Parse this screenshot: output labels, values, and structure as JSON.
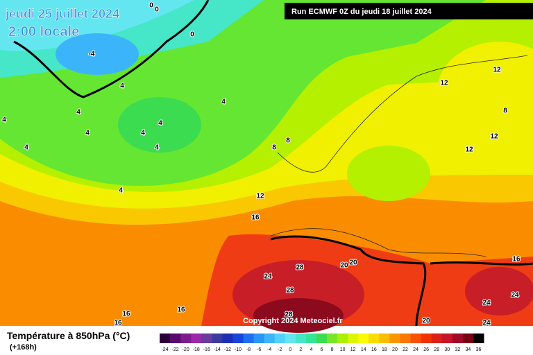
{
  "header": {
    "date": "jeudi 25 juillet 2024",
    "time": "2:00 locale",
    "run": "Run ECMWF 0Z du jeudi 18 juillet 2024"
  },
  "map": {
    "labels": [
      0,
      0,
      0,
      -4,
      4,
      4,
      4,
      4,
      4,
      4,
      4,
      4,
      4,
      4,
      8,
      8,
      12,
      16,
      12,
      12,
      12,
      12,
      8,
      28,
      24,
      28,
      28,
      20,
      20,
      16,
      24,
      24,
      24,
      20,
      16,
      16,
      16
    ],
    "copyright": "Copyright 2024 Meteociel.fr"
  },
  "legend": {
    "title": "Température à 850hPa (°C)",
    "lead": "(+168h)",
    "ticks": [
      -24,
      -22,
      -20,
      -18,
      -16,
      -14,
      -12,
      -10,
      -8,
      -6,
      -4,
      -2,
      0,
      2,
      4,
      6,
      8,
      10,
      12,
      14,
      16,
      18,
      20,
      22,
      24,
      26,
      28,
      30,
      32,
      34,
      36
    ],
    "colors": [
      "#2b0038",
      "#5a0a6e",
      "#7d1c8c",
      "#9a2aa8",
      "#6a3a9c",
      "#3a3aa0",
      "#1e2eb4",
      "#1446dc",
      "#1e6ef0",
      "#2896f8",
      "#3cb4fa",
      "#50d2fa",
      "#64e6f0",
      "#46e6c8",
      "#32e696",
      "#3cdc50",
      "#78e628",
      "#aaf000",
      "#dcf500",
      "#fafa00",
      "#fadc00",
      "#fabe00",
      "#fa9600",
      "#fa7800",
      "#fa5000",
      "#f03200",
      "#dc1e14",
      "#c81428",
      "#a00a28",
      "#780014",
      "#000000"
    ]
  }
}
